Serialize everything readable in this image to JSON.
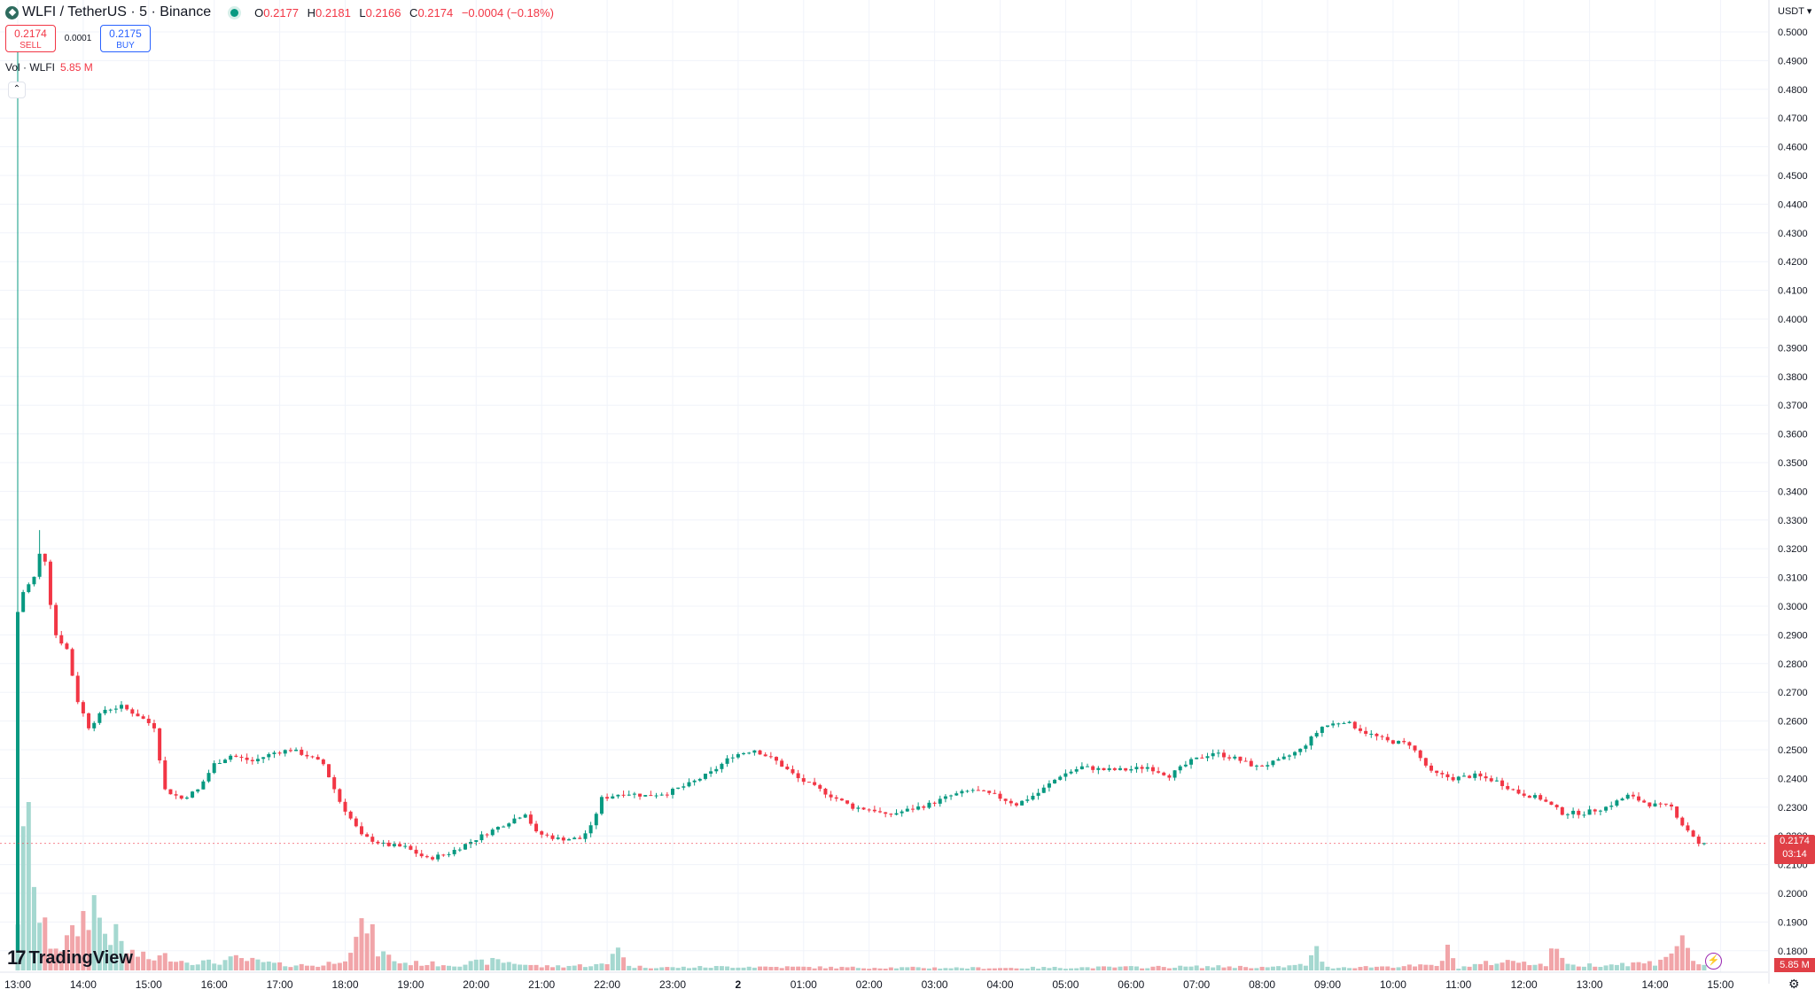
{
  "symbol": {
    "title": "WLFI / TetherUS · 5 · Binance",
    "open_key": "O",
    "open": "0.2177",
    "high_key": "H",
    "high": "0.2181",
    "low_key": "L",
    "low": "0.2166",
    "close_key": "C",
    "close": "0.2174",
    "change": "−0.0004 (−0.18%)"
  },
  "trade": {
    "sell_price": "0.2174",
    "sell_label": "SELL",
    "spread": "0.0001",
    "buy_price": "0.2175",
    "buy_label": "BUY"
  },
  "volume_legend": {
    "label": "Vol · WLFI",
    "value": "5.85 M"
  },
  "currency": "USDT",
  "current_price_badge": {
    "price": "0.2174",
    "countdown": "03:14"
  },
  "volume_badge": "5.85 M",
  "brand": "TradingView",
  "icons": {
    "collapse": "chevron-up-icon",
    "lightning": "lightning-icon",
    "settings": "settings-icon",
    "logo": "tradingview-logo-icon",
    "currency_dropdown": "chevron-down-icon"
  },
  "colors": {
    "up": "#089981",
    "down": "#f23645",
    "up_volume": "#a5d8d0",
    "down_volume": "#f1a5a9",
    "grid": "#f0f3fa"
  },
  "chart_data": {
    "type": "candlestick",
    "interval": "5 minutes",
    "y_axis": {
      "unit": "USDT",
      "range": [
        0.175,
        0.5
      ],
      "ticks": [
        "0.5000",
        "0.4900",
        "0.4800",
        "0.4700",
        "0.4600",
        "0.4500",
        "0.4400",
        "0.4300",
        "0.4200",
        "0.4100",
        "0.4000",
        "0.3900",
        "0.3800",
        "0.3700",
        "0.3600",
        "0.3500",
        "0.3400",
        "0.3300",
        "0.3200",
        "0.3100",
        "0.3000",
        "0.2900",
        "0.2800",
        "0.2700",
        "0.2600",
        "0.2500",
        "0.2400",
        "0.2300",
        "0.2200",
        "0.2100",
        "0.2000",
        "0.1900",
        "0.1800"
      ]
    },
    "x_axis": {
      "ticks": [
        "13:00",
        "14:00",
        "15:00",
        "16:00",
        "17:00",
        "18:00",
        "19:00",
        "20:00",
        "21:00",
        "22:00",
        "23:00",
        "2",
        "01:00",
        "02:00",
        "03:00",
        "04:00",
        "05:00",
        "06:00",
        "07:00",
        "08:00",
        "09:00",
        "10:00",
        "11:00",
        "12:00",
        "13:00",
        "14:00",
        "15:00"
      ]
    },
    "start_hour": 13,
    "price_path": [
      [
        0,
        0.2
      ],
      [
        1,
        0.298
      ],
      [
        2,
        0.305
      ],
      [
        4,
        0.31
      ],
      [
        5,
        0.318
      ],
      [
        6,
        0.316
      ],
      [
        7,
        0.301
      ],
      [
        8,
        0.29
      ],
      [
        10,
        0.285
      ],
      [
        12,
        0.267
      ],
      [
        14,
        0.258
      ],
      [
        17,
        0.264
      ],
      [
        20,
        0.265
      ],
      [
        23,
        0.262
      ],
      [
        26,
        0.258
      ],
      [
        28,
        0.236
      ],
      [
        31,
        0.233
      ],
      [
        34,
        0.236
      ],
      [
        37,
        0.245
      ],
      [
        40,
        0.248
      ],
      [
        44,
        0.246
      ],
      [
        48,
        0.249
      ],
      [
        51,
        0.25
      ],
      [
        54,
        0.248
      ],
      [
        57,
        0.245
      ],
      [
        60,
        0.232
      ],
      [
        64,
        0.22
      ],
      [
        68,
        0.217
      ],
      [
        72,
        0.216
      ],
      [
        76,
        0.212
      ],
      [
        80,
        0.214
      ],
      [
        84,
        0.218
      ],
      [
        88,
        0.222
      ],
      [
        92,
        0.226
      ],
      [
        94,
        0.228
      ],
      [
        96,
        0.221
      ],
      [
        100,
        0.219
      ],
      [
        104,
        0.219
      ],
      [
        106,
        0.223
      ],
      [
        108,
        0.233
      ],
      [
        112,
        0.235
      ],
      [
        116,
        0.234
      ],
      [
        120,
        0.235
      ],
      [
        124,
        0.238
      ],
      [
        128,
        0.242
      ],
      [
        132,
        0.248
      ],
      [
        136,
        0.25
      ],
      [
        140,
        0.246
      ],
      [
        144,
        0.24
      ],
      [
        148,
        0.236
      ],
      [
        152,
        0.232
      ],
      [
        154,
        0.23
      ],
      [
        158,
        0.229
      ],
      [
        160,
        0.227
      ],
      [
        164,
        0.229
      ],
      [
        168,
        0.231
      ],
      [
        172,
        0.234
      ],
      [
        176,
        0.236
      ],
      [
        180,
        0.234
      ],
      [
        184,
        0.231
      ],
      [
        188,
        0.235
      ],
      [
        192,
        0.241
      ],
      [
        196,
        0.244
      ],
      [
        200,
        0.243
      ],
      [
        204,
        0.243
      ],
      [
        208,
        0.244
      ],
      [
        212,
        0.241
      ],
      [
        216,
        0.246
      ],
      [
        220,
        0.249
      ],
      [
        224,
        0.247
      ],
      [
        228,
        0.244
      ],
      [
        232,
        0.246
      ],
      [
        236,
        0.25
      ],
      [
        240,
        0.258
      ],
      [
        244,
        0.26
      ],
      [
        248,
        0.256
      ],
      [
        252,
        0.253
      ],
      [
        256,
        0.252
      ],
      [
        260,
        0.242
      ],
      [
        264,
        0.24
      ],
      [
        268,
        0.241
      ],
      [
        272,
        0.239
      ],
      [
        276,
        0.235
      ],
      [
        280,
        0.233
      ],
      [
        284,
        0.228
      ],
      [
        288,
        0.228
      ],
      [
        292,
        0.23
      ],
      [
        296,
        0.234
      ],
      [
        300,
        0.231
      ],
      [
        304,
        0.23
      ],
      [
        306,
        0.224
      ],
      [
        308,
        0.22
      ],
      [
        309,
        0.217
      ]
    ],
    "volume_path": [
      [
        0,
        6.0
      ],
      [
        2,
        17.0
      ],
      [
        4,
        5.0
      ],
      [
        6,
        3.0
      ],
      [
        8,
        2.5
      ],
      [
        10,
        3.5
      ],
      [
        12,
        5.5
      ],
      [
        14,
        7.0
      ],
      [
        16,
        4.0
      ],
      [
        18,
        3.5
      ],
      [
        20,
        2.0
      ],
      [
        24,
        1.2
      ],
      [
        28,
        1.5
      ],
      [
        30,
        1.0
      ],
      [
        36,
        0.8
      ],
      [
        40,
        1.2
      ],
      [
        48,
        0.6
      ],
      [
        56,
        0.5
      ],
      [
        60,
        1.5
      ],
      [
        63,
        4.0
      ],
      [
        64,
        5.0
      ],
      [
        66,
        2.0
      ],
      [
        70,
        0.8
      ],
      [
        80,
        0.6
      ],
      [
        88,
        1.0
      ],
      [
        96,
        0.4
      ],
      [
        108,
        0.6
      ],
      [
        110,
        3.0
      ],
      [
        112,
        0.4
      ],
      [
        120,
        0.3
      ],
      [
        132,
        0.4
      ],
      [
        150,
        0.3
      ],
      [
        180,
        0.25
      ],
      [
        222,
        0.4
      ],
      [
        230,
        0.3
      ],
      [
        236,
        0.6
      ],
      [
        238,
        2.0
      ],
      [
        240,
        0.3
      ],
      [
        260,
        0.5
      ],
      [
        262,
        2.0
      ],
      [
        264,
        0.3
      ],
      [
        270,
        0.8
      ],
      [
        276,
        1.0
      ],
      [
        280,
        0.5
      ],
      [
        282,
        3.0
      ],
      [
        284,
        0.5
      ],
      [
        300,
        0.8
      ],
      [
        304,
        2.5
      ],
      [
        306,
        3.0
      ],
      [
        307,
        1.0
      ],
      [
        309,
        0.6
      ]
    ],
    "volume_max": 17.5,
    "current_price": 0.2174,
    "current_volume": "5.85 M"
  }
}
